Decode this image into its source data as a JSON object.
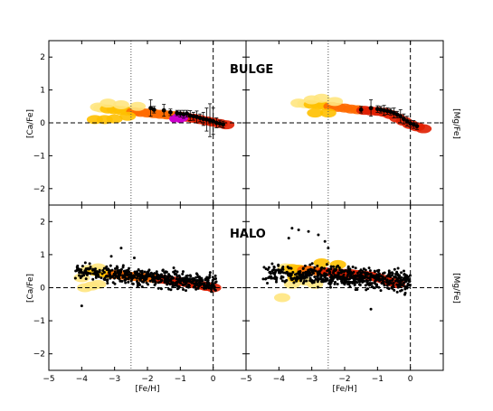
{
  "chart_data": {
    "type": "scatter",
    "xlabel": "[Fe/H]",
    "xlim": [
      -5,
      1
    ],
    "ylim": [
      -2.5,
      2.5
    ],
    "xticks": [
      "−5",
      "−4",
      "−3",
      "−2",
      "−1",
      "0"
    ],
    "yticks": [
      "−2",
      "−1",
      "0",
      "1",
      "2"
    ],
    "reference_lines": {
      "dotted_x": -2.5,
      "dashed_x": 0,
      "dashed_y": 0
    },
    "panels": [
      {
        "id": "bulge-ca",
        "row_title": "BULGE",
        "ylabel": "[Ca/Fe]",
        "density_colors": [
          "#ffe680",
          "#ffc000",
          "#ff6a00",
          "#e01e00"
        ],
        "density": [
          [
            -3.5,
            0.48,
            0
          ],
          [
            -3.4,
            0.45,
            0
          ],
          [
            -3.2,
            0.42,
            1
          ],
          [
            -3.0,
            0.4,
            1
          ],
          [
            -2.8,
            0.38,
            1
          ],
          [
            -2.6,
            0.36,
            1
          ],
          [
            -2.4,
            0.34,
            2
          ],
          [
            -2.2,
            0.32,
            2
          ],
          [
            -2.0,
            0.3,
            2
          ],
          [
            -1.8,
            0.28,
            2
          ],
          [
            -1.6,
            0.26,
            2
          ],
          [
            -1.4,
            0.24,
            2
          ],
          [
            -1.2,
            0.22,
            2
          ],
          [
            -1.0,
            0.2,
            2
          ],
          [
            -0.8,
            0.17,
            3
          ],
          [
            -0.6,
            0.14,
            3
          ],
          [
            -0.4,
            0.1,
            3
          ],
          [
            -0.2,
            0.06,
            3
          ],
          [
            0.0,
            0.02,
            3
          ],
          [
            0.2,
            -0.02,
            3
          ],
          [
            0.4,
            -0.06,
            3
          ],
          [
            -3.6,
            0.1,
            1
          ],
          [
            -3.3,
            0.1,
            1
          ],
          [
            -3.0,
            0.12,
            1
          ],
          [
            -2.8,
            0.55,
            0
          ],
          [
            -3.2,
            0.6,
            0
          ],
          [
            -2.6,
            0.2,
            1
          ],
          [
            -2.3,
            0.5,
            0
          ]
        ],
        "highlight": {
          "color": "#cc00cc",
          "x": [
            -1.2,
            -1.1,
            -1.0,
            -0.9
          ],
          "y": [
            0.12,
            0.18,
            0.1,
            0.15
          ]
        },
        "points": {
          "x": [
            -1.9,
            -1.8,
            -1.5,
            -1.3,
            -1.1,
            -1.0,
            -0.9,
            -0.8,
            -0.7,
            -0.6,
            -0.5,
            -0.4,
            -0.3,
            -0.2,
            -0.1,
            0.0,
            0.1,
            0.2,
            0.3
          ],
          "y": [
            0.45,
            0.4,
            0.38,
            0.32,
            0.3,
            0.28,
            0.26,
            0.28,
            0.22,
            0.2,
            0.18,
            0.15,
            0.12,
            0.1,
            0.08,
            0.05,
            0.0,
            -0.02,
            -0.05
          ],
          "yerr": [
            0.25,
            0.1,
            0.18,
            0.1,
            0.08,
            0.1,
            0.12,
            0.1,
            0.15,
            0.12,
            0.18,
            0.12,
            0.2,
            0.35,
            0.5,
            0.4,
            0.15,
            0.1,
            0.1
          ]
        }
      },
      {
        "id": "bulge-mg",
        "row_title": "",
        "ylabel": "[Mg/Fe]",
        "density_colors": [
          "#ffe680",
          "#ffc000",
          "#ff6a00",
          "#e01e00"
        ],
        "density": [
          [
            -3.4,
            0.6,
            0
          ],
          [
            -3.2,
            0.58,
            0
          ],
          [
            -3.0,
            0.56,
            1
          ],
          [
            -2.8,
            0.55,
            1
          ],
          [
            -2.6,
            0.52,
            1
          ],
          [
            -2.4,
            0.5,
            2
          ],
          [
            -2.2,
            0.47,
            2
          ],
          [
            -2.0,
            0.45,
            2
          ],
          [
            -1.8,
            0.42,
            2
          ],
          [
            -1.6,
            0.4,
            2
          ],
          [
            -1.4,
            0.38,
            3
          ],
          [
            -1.2,
            0.36,
            3
          ],
          [
            -1.0,
            0.35,
            3
          ],
          [
            -0.8,
            0.32,
            3
          ],
          [
            -0.6,
            0.25,
            3
          ],
          [
            -0.4,
            0.15,
            3
          ],
          [
            -0.2,
            0.05,
            3
          ],
          [
            0.0,
            -0.05,
            3
          ],
          [
            0.2,
            -0.12,
            3
          ],
          [
            0.4,
            -0.18,
            3
          ],
          [
            -3.0,
            0.7,
            0
          ],
          [
            -2.7,
            0.75,
            0
          ],
          [
            -2.9,
            0.3,
            1
          ],
          [
            -2.5,
            0.3,
            1
          ],
          [
            -2.3,
            0.65,
            0
          ]
        ],
        "highlight": null,
        "points": {
          "x": [
            -1.5,
            -1.2,
            -1.0,
            -0.9,
            -0.8,
            -0.7,
            -0.6,
            -0.5,
            -0.4,
            -0.3,
            -0.2,
            -0.1,
            0.0,
            0.1,
            0.2
          ],
          "y": [
            0.4,
            0.45,
            0.42,
            0.4,
            0.38,
            0.36,
            0.34,
            0.3,
            0.25,
            0.2,
            0.12,
            0.05,
            -0.02,
            -0.05,
            -0.1
          ],
          "yerr": [
            0.1,
            0.25,
            0.1,
            0.1,
            0.15,
            0.1,
            0.1,
            0.15,
            0.1,
            0.2,
            0.15,
            0.15,
            0.1,
            0.12,
            0.1
          ]
        }
      },
      {
        "id": "halo-ca",
        "row_title": "HALO",
        "ylabel": "[Ca/Fe]",
        "density_colors": [
          "#ffe680",
          "#ffc000",
          "#ff6a00",
          "#e01e00"
        ],
        "density": [
          [
            -3.8,
            0.55,
            0
          ],
          [
            -3.6,
            0.5,
            1
          ],
          [
            -3.4,
            0.45,
            1
          ],
          [
            -3.2,
            0.42,
            1
          ],
          [
            -3.0,
            0.4,
            2
          ],
          [
            -2.8,
            0.38,
            2
          ],
          [
            -2.6,
            0.36,
            2
          ],
          [
            -2.4,
            0.34,
            2
          ],
          [
            -2.2,
            0.32,
            2
          ],
          [
            -2.0,
            0.3,
            2
          ],
          [
            -1.8,
            0.28,
            2
          ],
          [
            -1.6,
            0.26,
            3
          ],
          [
            -1.4,
            0.24,
            3
          ],
          [
            -1.2,
            0.2,
            3
          ],
          [
            -1.0,
            0.18,
            3
          ],
          [
            -0.8,
            0.15,
            3
          ],
          [
            -0.6,
            0.12,
            3
          ],
          [
            -0.4,
            0.08,
            3
          ],
          [
            -0.2,
            0.04,
            3
          ],
          [
            0.0,
            0.0,
            3
          ],
          [
            -3.9,
            0.0,
            0
          ],
          [
            -3.7,
            0.05,
            0
          ],
          [
            -3.5,
            0.1,
            0
          ],
          [
            -3.5,
            0.6,
            0
          ],
          [
            -4.0,
            0.3,
            0
          ]
        ],
        "highlight": null,
        "scatter": {
          "seed": 7,
          "n": 520,
          "xmin": -4.2,
          "xmax": 0.1,
          "slope": -0.09,
          "intercept": 0.14,
          "spread": 0.28,
          "extra": {
            "x": [
              -4.0,
              -3.1,
              -2.8,
              -2.4,
              -1.2
            ],
            "y": [
              -0.55,
              0.95,
              1.2,
              0.9,
              0.6
            ]
          }
        }
      },
      {
        "id": "halo-mg",
        "row_title": "",
        "ylabel": "[Mg/Fe]",
        "density_colors": [
          "#ffe680",
          "#ffc000",
          "#ff6a00",
          "#e01e00"
        ],
        "density": [
          [
            -3.8,
            0.6,
            0
          ],
          [
            -3.6,
            0.58,
            1
          ],
          [
            -3.4,
            0.56,
            1
          ],
          [
            -3.2,
            0.54,
            2
          ],
          [
            -3.0,
            0.52,
            2
          ],
          [
            -2.8,
            0.5,
            2
          ],
          [
            -2.6,
            0.48,
            3
          ],
          [
            -2.4,
            0.46,
            3
          ],
          [
            -2.2,
            0.45,
            3
          ],
          [
            -2.0,
            0.43,
            3
          ],
          [
            -1.8,
            0.42,
            3
          ],
          [
            -1.6,
            0.4,
            3
          ],
          [
            -1.4,
            0.38,
            3
          ],
          [
            -1.2,
            0.35,
            3
          ],
          [
            -1.0,
            0.3,
            3
          ],
          [
            -0.8,
            0.25,
            3
          ],
          [
            -0.6,
            0.18,
            3
          ],
          [
            -0.4,
            0.12,
            3
          ],
          [
            -3.2,
            0.2,
            0
          ],
          [
            -2.9,
            0.1,
            0
          ],
          [
            -3.6,
            0.1,
            0
          ],
          [
            -3.5,
            0.3,
            1
          ],
          [
            -3.9,
            -0.3,
            0
          ],
          [
            -2.7,
            0.75,
            1
          ],
          [
            -2.2,
            0.7,
            1
          ]
        ],
        "highlight": null,
        "scatter": {
          "seed": 13,
          "n": 600,
          "xmin": -4.5,
          "xmax": 0.0,
          "slope": -0.06,
          "intercept": 0.2,
          "spread": 0.32,
          "extra": {
            "x": [
              -3.6,
              -3.4,
              -3.1,
              -2.8,
              -2.6,
              -2.5,
              -3.7,
              -1.2
            ],
            "y": [
              1.8,
              1.75,
              1.7,
              1.6,
              1.4,
              1.2,
              1.5,
              -0.65
            ]
          }
        }
      }
    ]
  }
}
